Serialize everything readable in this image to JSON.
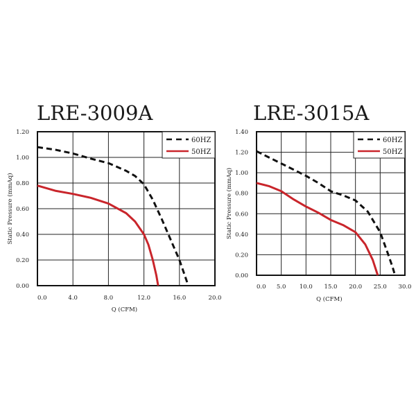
{
  "chart_data": [
    {
      "type": "line",
      "title": "LRE-3009A",
      "xlabel": "Q (CFM)",
      "ylabel": "Static Pressure (mmAq)",
      "xlim": [
        0,
        20
      ],
      "ylim": [
        0,
        1.2
      ],
      "xticks": [
        "0.0",
        "4.0",
        "8.0",
        "12.0",
        "16.0",
        "20.0"
      ],
      "yticks": [
        "0.00",
        "0.20",
        "0.40",
        "0.60",
        "0.80",
        "1.00",
        "1.20"
      ],
      "grid": true,
      "legend_position": "top-right",
      "series": [
        {
          "name": "60HZ",
          "style": "dashed",
          "color": "#111111",
          "points": [
            [
              0,
              1.08
            ],
            [
              2,
              1.06
            ],
            [
              4,
              1.03
            ],
            [
              6,
              0.99
            ],
            [
              8,
              0.955
            ],
            [
              10,
              0.895
            ],
            [
              11,
              0.855
            ],
            [
              12,
              0.79
            ],
            [
              13,
              0.67
            ],
            [
              14,
              0.52
            ],
            [
              15,
              0.36
            ],
            [
              16,
              0.2
            ],
            [
              16.5,
              0.1
            ],
            [
              17,
              0.0
            ]
          ]
        },
        {
          "name": "50HZ",
          "style": "solid",
          "color": "#c9252b",
          "points": [
            [
              0,
              0.78
            ],
            [
              2,
              0.74
            ],
            [
              4,
              0.715
            ],
            [
              6,
              0.685
            ],
            [
              8,
              0.64
            ],
            [
              10,
              0.565
            ],
            [
              11,
              0.5
            ],
            [
              12,
              0.4
            ],
            [
              12.5,
              0.32
            ],
            [
              13,
              0.2
            ],
            [
              13.4,
              0.08
            ],
            [
              13.6,
              0.0
            ]
          ]
        }
      ]
    },
    {
      "type": "line",
      "title": "LRE-3015A",
      "xlabel": "Q (CFM)",
      "ylabel": "Static Pressure (mmAq)",
      "xlim": [
        0,
        30
      ],
      "ylim": [
        0,
        1.4
      ],
      "xticks": [
        "0.0",
        "5.0",
        "10.0",
        "15.0",
        "20.0",
        "25.0",
        "30.0"
      ],
      "yticks": [
        "0.00",
        "0.20",
        "0.40",
        "0.60",
        "0.80",
        "1.00",
        "1.20",
        "1.40"
      ],
      "grid": true,
      "legend_position": "top-right",
      "series": [
        {
          "name": "60HZ",
          "style": "dashed",
          "color": "#111111",
          "points": [
            [
              0,
              1.21
            ],
            [
              2.5,
              1.15
            ],
            [
              5,
              1.09
            ],
            [
              7.5,
              1.03
            ],
            [
              10,
              0.97
            ],
            [
              12.5,
              0.9
            ],
            [
              15,
              0.82
            ],
            [
              17.5,
              0.78
            ],
            [
              20,
              0.73
            ],
            [
              22.5,
              0.62
            ],
            [
              25,
              0.42
            ],
            [
              26.5,
              0.22
            ],
            [
              27.5,
              0.08
            ],
            [
              28,
              0.0
            ]
          ]
        },
        {
          "name": "50HZ",
          "style": "solid",
          "color": "#c9252b",
          "points": [
            [
              0,
              0.9
            ],
            [
              2.5,
              0.87
            ],
            [
              5,
              0.82
            ],
            [
              7.5,
              0.74
            ],
            [
              10,
              0.67
            ],
            [
              12.5,
              0.61
            ],
            [
              15,
              0.54
            ],
            [
              17.5,
              0.49
            ],
            [
              20,
              0.42
            ],
            [
              22,
              0.3
            ],
            [
              23.5,
              0.15
            ],
            [
              24.5,
              0.0
            ]
          ]
        }
      ]
    }
  ]
}
